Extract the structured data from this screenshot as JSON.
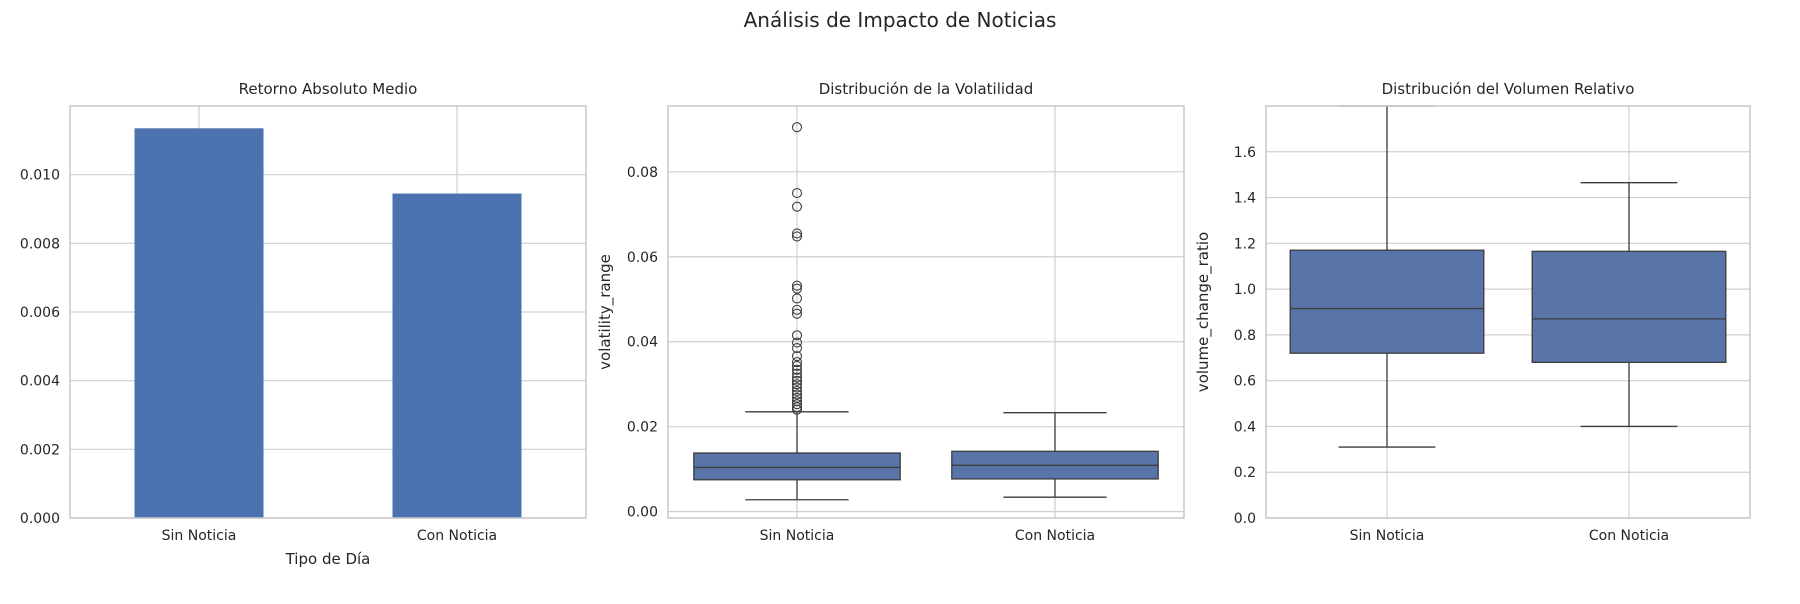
{
  "figure_title": "Análisis de Impacto de Noticias",
  "colors": {
    "bar": "#4c72b0",
    "box": "#5874a8",
    "line": "#3d3d3d",
    "grid": "#cfcfcf",
    "frame": "#c8c8c8",
    "text": "#262626"
  },
  "chart_data": [
    {
      "type": "bar",
      "title": "Retorno Absoluto Medio",
      "xlabel": "Tipo de Día",
      "ylabel": "",
      "categories": [
        "Sin Noticia",
        "Con Noticia"
      ],
      "values": [
        0.01135,
        0.00945
      ],
      "ylim": [
        0,
        0.012
      ],
      "yticks": [
        0.0,
        0.002,
        0.004,
        0.006,
        0.008,
        0.01
      ],
      "ytick_labels": [
        "0.000",
        "0.002",
        "0.004",
        "0.006",
        "0.008",
        "0.010"
      ],
      "grid": true
    },
    {
      "type": "box",
      "title": "Distribución de la Volatilidad",
      "xlabel": "",
      "ylabel": "volatility_range",
      "categories": [
        "Sin Noticia",
        "Con Noticia"
      ],
      "ylim": [
        -0.0015,
        0.0955
      ],
      "yticks": [
        0.0,
        0.02,
        0.04,
        0.06,
        0.08
      ],
      "ytick_labels": [
        "0.00",
        "0.02",
        "0.04",
        "0.06",
        "0.08"
      ],
      "grid": true,
      "boxes": [
        {
          "category": "Sin Noticia",
          "whisker_low": 0.0028,
          "q1": 0.0075,
          "median": 0.0104,
          "q3": 0.0138,
          "whisker_high": 0.0235,
          "outliers": [
            0.0905,
            0.075,
            0.0718,
            0.0655,
            0.0648,
            0.0532,
            0.0525,
            0.0502,
            0.0475,
            0.0466,
            0.0415,
            0.0398,
            0.0385,
            0.0366,
            0.0352,
            0.0343,
            0.0334,
            0.0325,
            0.0316,
            0.0308,
            0.03,
            0.0292,
            0.0284,
            0.0276,
            0.0268,
            0.026,
            0.0253,
            0.0246,
            0.024
          ]
        },
        {
          "category": "Con Noticia",
          "whisker_low": 0.0034,
          "q1": 0.0077,
          "median": 0.0109,
          "q3": 0.0142,
          "whisker_high": 0.0233,
          "outliers": []
        }
      ]
    },
    {
      "type": "box",
      "title": "Distribución del Volumen Relativo",
      "xlabel": "",
      "ylabel": "volume_change_ratio",
      "categories": [
        "Sin Noticia",
        "Con Noticia"
      ],
      "ylim": [
        0,
        1.8
      ],
      "yticks": [
        0.0,
        0.2,
        0.4,
        0.6,
        0.8,
        1.0,
        1.2,
        1.4,
        1.6
      ],
      "ytick_labels": [
        "0.0",
        "0.2",
        "0.4",
        "0.6",
        "0.8",
        "1.0",
        "1.2",
        "1.4",
        "1.6"
      ],
      "grid": true,
      "boxes": [
        {
          "category": "Sin Noticia",
          "whisker_low": 0.31,
          "q1": 0.72,
          "median": 0.915,
          "q3": 1.17,
          "whisker_high": 1.8,
          "outliers": []
        },
        {
          "category": "Con Noticia",
          "whisker_low": 0.4,
          "q1": 0.68,
          "median": 0.87,
          "q3": 1.165,
          "whisker_high": 1.465,
          "outliers": []
        }
      ]
    }
  ]
}
